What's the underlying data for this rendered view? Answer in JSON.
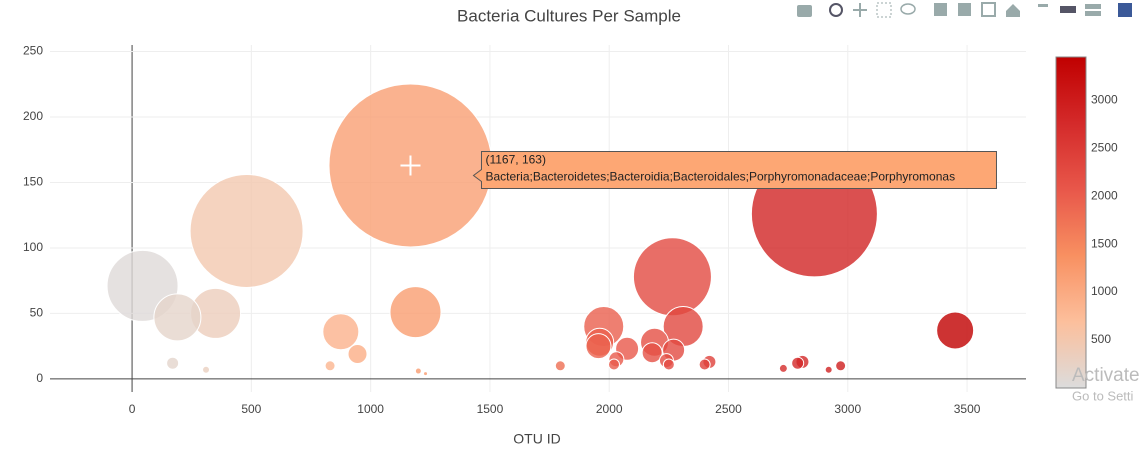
{
  "chart_data": {
    "type": "bubble",
    "title": "Bacteria Cultures Per Sample",
    "x_label": "OTU ID",
    "x": [
      1167,
      2860,
      480,
      2265,
      44,
      1188,
      350,
      190,
      3450,
      2310,
      875,
      1977,
      1960,
      1955,
      2190,
      2075,
      2180,
      945,
      2270,
      2030,
      2240,
      2420,
      2810,
      2790,
      2020,
      2250,
      2400,
      170,
      1795,
      2970,
      830,
      2730,
      2920,
      310,
      1200,
      1230
    ],
    "values": [
      163,
      126,
      113,
      78,
      71,
      51,
      50,
      47,
      37,
      40,
      36,
      40,
      28,
      25,
      28,
      23,
      20,
      19,
      22,
      15,
      14,
      13,
      13,
      12,
      11,
      11,
      11,
      12,
      10,
      10,
      10,
      8,
      7,
      7,
      6,
      4
    ],
    "xlim": [
      -344,
      3747
    ],
    "ylim": [
      -10,
      255
    ],
    "xticks": [
      0,
      500,
      1000,
      1500,
      2000,
      2500,
      3000,
      3500
    ],
    "yticks": [
      0,
      50,
      100,
      150,
      200,
      250
    ],
    "grid": true,
    "opacity": 0.8,
    "colorscale": [
      "#dcdcdc",
      "#fcbf9c",
      "#f89061",
      "#e8574a",
      "#d42a2a",
      "#c00000"
    ],
    "clim": [
      0,
      3450
    ],
    "colorbar_ticks": [
      500,
      1000,
      1500,
      2000,
      2500,
      3000
    ],
    "hover": {
      "index": 0,
      "label": "(1167, 163)",
      "text": "Bacteria;Bacteroidetes;Bacteroidia;Bacteroidales;Porphyromonadaceae;Porphyromonas",
      "color": "#fda774"
    },
    "watermark": [
      "Activate",
      "Go to Setti"
    ]
  }
}
